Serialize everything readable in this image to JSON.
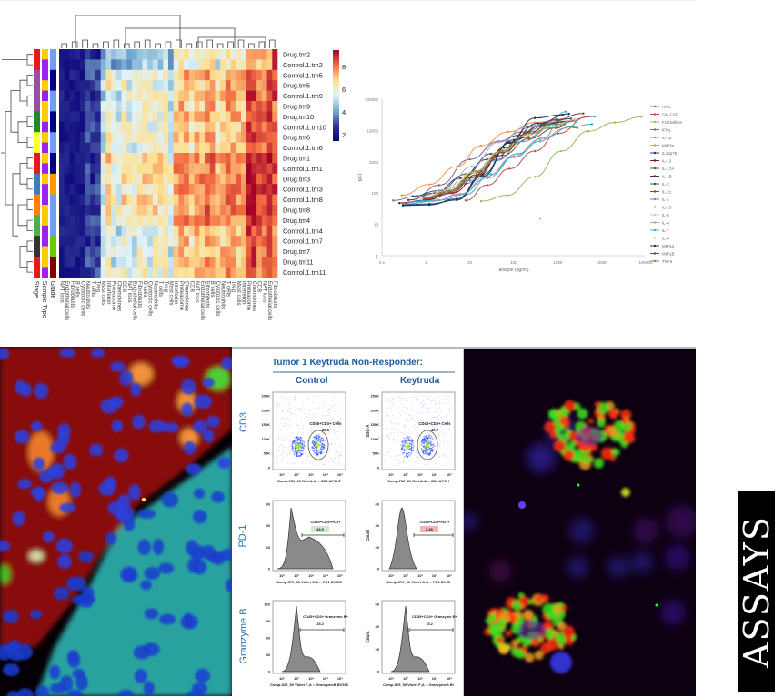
{
  "heatmap": {
    "row_labels": [
      "Drug.tm2",
      "Control.1.tm2",
      "Control.1.tm5",
      "Drug.tm5",
      "Control.1.tm9",
      "Drug.tm9",
      "Drug.tm10",
      "Control.1.tm10",
      "Drug.tm6",
      "Control.1.tm6",
      "Drug.tm1",
      "Control.1.tm1",
      "Drug.tm3",
      "Control.1.tm3",
      "Control.1.tm8",
      "Drug.tm8",
      "Drug.tm4",
      "Control.1.tm4",
      "Control.1.tm7",
      "Drug.tm7",
      "Drug.tm11",
      "Control.1.tm11"
    ],
    "annotation_labels": [
      "Stage",
      "Sample Type",
      "Grade"
    ],
    "colorbar_ticks": [
      "8",
      "6",
      "4",
      "2"
    ],
    "colorbar_colors": [
      "#a50026",
      "#f46d43",
      "#fee090",
      "#e0f3f8",
      "#74add1",
      "#313695",
      "#08007a"
    ],
    "column_label_fragments": [
      "NAT loss",
      "Endothelial cells",
      "Fibroblasts",
      "B cells",
      "Cytotoxic cells",
      "Neutrophils",
      "T cells",
      "Treg",
      "Mast cells",
      "Interferon",
      "Proteasome",
      "Chemokines",
      "CD8"
    ]
  },
  "chart_data": [
    {
      "type": "heatmap",
      "title": "",
      "rows": [
        "Drug.tm2",
        "Control.1.tm2",
        "Control.1.tm5",
        "Drug.tm5",
        "Control.1.tm9",
        "Drug.tm9",
        "Drug.tm10",
        "Control.1.tm10",
        "Drug.tm6",
        "Control.1.tm6",
        "Drug.tm1",
        "Control.1.tm1",
        "Drug.tm3",
        "Control.1.tm3",
        "Control.1.tm8",
        "Drug.tm8",
        "Drug.tm4",
        "Control.1.tm4",
        "Control.1.tm7",
        "Drug.tm7",
        "Drug.tm11",
        "Control.1.tm11"
      ],
      "annotations": [
        "Stage",
        "Sample Type",
        "Grade"
      ],
      "color_range": [
        1,
        9
      ],
      "colorbar_ticks": [
        2,
        4,
        6,
        8
      ],
      "dendrogram_rows": true,
      "dendrogram_cols": true
    },
    {
      "type": "line",
      "title": "",
      "xlabel": "analyte (pg/ml)",
      "ylabel": "MFI",
      "x_scale": "log",
      "y_scale": "log",
      "xlim": [
        0.1,
        100000
      ],
      "ylim": [
        1,
        100000
      ],
      "x_ticks": [
        "0.1",
        "1",
        "10",
        "100",
        "1000",
        "10000",
        "100000"
      ],
      "y_ticks": [
        "1",
        "10",
        "100",
        "1000",
        "10000",
        "100000"
      ],
      "legend_position": "right",
      "series": [
        {
          "name": "ITAC",
          "color": "#4f81bd",
          "x": [
            0.6,
            2,
            8,
            40,
            200,
            1000,
            7000
          ],
          "y": [
            55,
            85,
            200,
            1200,
            6000,
            18000,
            28000
          ]
        },
        {
          "name": "GM-CSF",
          "color": "#c0504d",
          "x": [
            8,
            25,
            80,
            300,
            1000,
            5000
          ],
          "y": [
            58,
            180,
            600,
            2200,
            8000,
            28000
          ]
        },
        {
          "name": "Fractalkine",
          "color": "#9bbb59",
          "x": [
            18,
            70,
            300,
            1200,
            5000,
            20000,
            80000
          ],
          "y": [
            55,
            85,
            330,
            2200,
            9500,
            18000,
            27000
          ]
        },
        {
          "name": "IFNy",
          "color": "#8064a2",
          "x": [
            0.18,
            0.6,
            2,
            10,
            45,
            150,
            800
          ],
          "y": [
            58,
            80,
            180,
            1200,
            4500,
            9000,
            18000
          ]
        },
        {
          "name": "IL-10",
          "color": "#4bacc6",
          "x": [
            0.35,
            1.5,
            6,
            25,
            100,
            400,
            1500
          ],
          "y": [
            45,
            55,
            90,
            300,
            1400,
            4500,
            40000
          ]
        },
        {
          "name": "MIP3a",
          "color": "#f79646",
          "x": [
            0.28,
            1.2,
            5,
            18,
            75,
            300,
            1200
          ],
          "y": [
            85,
            190,
            700,
            3300,
            9000,
            18000,
            22000
          ]
        },
        {
          "name": "IL12p70",
          "color": "#1f3864",
          "x": [
            0.3,
            1.2,
            5,
            20,
            80,
            300,
            1300
          ],
          "y": [
            40,
            42,
            65,
            400,
            4200,
            25000,
            32000
          ]
        },
        {
          "name": "IL-13",
          "color": "#7b1c1c",
          "x": [
            0.25,
            1,
            4,
            15,
            60,
            250,
            1000
          ],
          "y": [
            48,
            60,
            100,
            350,
            2800,
            14000,
            22000
          ]
        },
        {
          "name": "IL-17A",
          "color": "#4f6228",
          "x": [
            0.6,
            2.5,
            10,
            40,
            150,
            600,
            2500
          ],
          "y": [
            55,
            90,
            300,
            1500,
            6000,
            14000,
            20000
          ]
        },
        {
          "name": "IL-1B",
          "color": "#3f3151",
          "x": [
            0.4,
            1.6,
            6,
            25,
            100,
            400,
            1800
          ],
          "y": [
            60,
            100,
            300,
            1200,
            5000,
            14000,
            20000
          ]
        },
        {
          "name": "IL-2",
          "color": "#215967",
          "x": [
            0.5,
            2,
            8,
            30,
            120,
            500,
            2000
          ],
          "y": [
            80,
            120,
            400,
            1800,
            7000,
            16000,
            24000
          ]
        },
        {
          "name": "IL-21",
          "color": "#984807",
          "x": [
            0.9,
            3.5,
            14,
            55,
            220,
            900,
            2400
          ],
          "y": [
            65,
            110,
            450,
            1600,
            5500,
            12000,
            22000
          ]
        },
        {
          "name": "IL-4",
          "color": "#558ed5",
          "x": [
            0.6,
            2.4,
            10,
            40,
            160,
            650,
            2600
          ],
          "y": [
            55,
            90,
            250,
            1100,
            4500,
            12000,
            20000
          ]
        },
        {
          "name": "IL-23",
          "color": "#d99694",
          "x": [
            1.5,
            6,
            25,
            100,
            400,
            1600
          ],
          "y": [
            55,
            95,
            350,
            1500,
            5200,
            12000
          ]
        },
        {
          "name": "IL-5",
          "color": "#c3d69b",
          "x": [
            0.8,
            3,
            12,
            50,
            200,
            800
          ],
          "y": [
            70,
            120,
            450,
            2200,
            7000,
            14000
          ]
        },
        {
          "name": "IL-6",
          "color": "#b3a2c7",
          "x": [
            0.7,
            2.8,
            11,
            45,
            180,
            700
          ],
          "y": [
            75,
            130,
            700,
            4200,
            12000,
            19000
          ]
        },
        {
          "name": "IL-7",
          "color": "#31b6d4",
          "x": [
            0.5,
            2,
            8,
            30,
            120,
            500,
            2000,
            6000
          ],
          "y": [
            52,
            60,
            90,
            400,
            1800,
            6000,
            13000,
            16000
          ]
        },
        {
          "name": "IL-8",
          "color": "#fac08f",
          "x": [
            0.8,
            3,
            12,
            50,
            200,
            800,
            2500
          ],
          "y": [
            70,
            120,
            480,
            2000,
            7000,
            15000,
            22000
          ]
        },
        {
          "name": "MIP1a",
          "color": "#17375e",
          "x": [
            0.3,
            1.2,
            5,
            20,
            80,
            350,
            1800
          ],
          "y": [
            42,
            45,
            60,
            350,
            4000,
            17000,
            34000
          ]
        },
        {
          "name": "MIP1B",
          "color": "#953735",
          "x": [
            0.9,
            3.5,
            14,
            55,
            230,
            900,
            3800
          ],
          "y": [
            62,
            100,
            380,
            2000,
            9000,
            22000,
            35000
          ]
        },
        {
          "name": "TNFa",
          "color": "#76923c",
          "x": [
            0.9,
            3.5,
            14,
            55,
            220,
            900,
            2800
          ],
          "y": [
            70,
            120,
            500,
            2300,
            8000,
            16000,
            12000
          ]
        }
      ]
    },
    {
      "type": "scatter",
      "title": "Tumor 1 Keytruda Non-Responder: CD3",
      "panels": [
        {
          "name": "Control",
          "gate": "CD45+CD3+ Cells",
          "value": 35.5,
          "xlabel": "Comp-780_60 Red A-A :: CD3 APCH7",
          "ylabel": "CD3"
        },
        {
          "name": "Keytruda",
          "gate": "CD45+CD3+ Cells",
          "value": 46.7,
          "xlabel": "Comp-780_60 Red A-A :: CD3 APCH",
          "ylabel": "SSC-A"
        }
      ],
      "y_ticks": [
        "0",
        "50K",
        "100K",
        "150K",
        "200K",
        "250K"
      ],
      "x_ticks": [
        "10^1",
        "10^2",
        "10^3",
        "10^4",
        "10^5"
      ]
    },
    {
      "type": "area",
      "title": "PD-1",
      "panels": [
        {
          "name": "Control",
          "gate": "CD45+CD3+PD1+",
          "value": 48.5,
          "xlabel": "Comp-670_30 Violet C-A :: PD1 BV650",
          "y_ticks": [
            "0",
            "20",
            "40",
            "60"
          ]
        },
        {
          "name": "Keytruda",
          "gate": "CD45+CD3+PD1+",
          "value": 8.36,
          "xlabel": "Comp-670_30 Violet C-A :: PD1 BV65",
          "ylabel": "Count",
          "y_ticks": [
            "0",
            "20",
            "40",
            "60"
          ]
        }
      ]
    },
    {
      "type": "area",
      "title": "Granzyme B",
      "panels": [
        {
          "name": "Control",
          "gate": "CD45+CD3+ Granzyme B+",
          "value": 15.2,
          "xlabel": "Comp-525_50 Violet F-A :: GranzymeB BV510",
          "y_ticks": [
            "0",
            "30",
            "60",
            "90",
            "120"
          ]
        },
        {
          "name": "Keytruda",
          "gate": "CD45+CD3+ Granzyme B+",
          "value": 15.2,
          "xlabel": "Comp-525_50 Violet F-A :: GranzymeB B\\",
          "ylabel": "Count",
          "y_ticks": [
            "0",
            "20",
            "40",
            "60"
          ]
        }
      ]
    }
  ],
  "curve": {
    "xlabel": "analyte (pg/ml)",
    "ylabel": "MFI",
    "x_ticks": [
      "0.1",
      "1",
      "10",
      "100",
      "1000",
      "10000",
      "100000"
    ],
    "y_ticks": [
      "100000",
      "10000",
      "1000",
      "100",
      "10",
      "1"
    ],
    "legend": [
      "ITAC",
      "GM-CSF",
      "Fractalkine",
      "IFNy",
      "IL-10",
      "MIP3a",
      "IL12p70",
      "IL-13",
      "IL-17A",
      "IL-1B",
      "IL-2",
      "IL-21",
      "IL-4",
      "IL-23",
      "IL-5",
      "IL-6",
      "IL-7",
      "IL-8",
      "MIP1a",
      "MIP1B",
      "TNFa"
    ]
  },
  "flow": {
    "title": "Tumor 1 Keytruda Non-Responder:",
    "col_control": "Control",
    "col_keytruda": "Keytruda",
    "row_cd3": "CD3",
    "row_pd1": "PD-1",
    "row_gzmb": "Granzyme B",
    "cd3_gate": "CD45+CD3+ Cells",
    "cd3_control_val": "35.5",
    "cd3_keytruda_val": "46.7",
    "cd3_ylabel_k": "SSC-A",
    "cd3_xlabel_c": "Comp-780_60 Red A-A :: CD3 APCH7",
    "cd3_xlabel_k": "Comp-780_60 Red A-A :: CD3 APCH",
    "pd1_gate": "CD45+CD3+PD1+",
    "pd1_control_val": "48.5",
    "pd1_keytruda_val": "8.36",
    "pd1_xlabel_c": "Comp-670_30 Violet C-A :: PD1 BV650",
    "pd1_xlabel_k": "Comp-670_30 Violet C-A :: PD1 BV65",
    "count_label": "Count",
    "gzmb_gate": "CD45+CD3+ Granzyme B+",
    "gzmb_control_val": "15.2",
    "gzmb_keytruda_val": "15.2",
    "gzmb_xlabel_c": "Comp-525_50 Violet F-A :: GranzymeB BV510",
    "gzmb_xlabel_k": "Comp-525_50 Violet F-A :: GranzymeB B\\"
  },
  "side_word": "ASSAYS"
}
